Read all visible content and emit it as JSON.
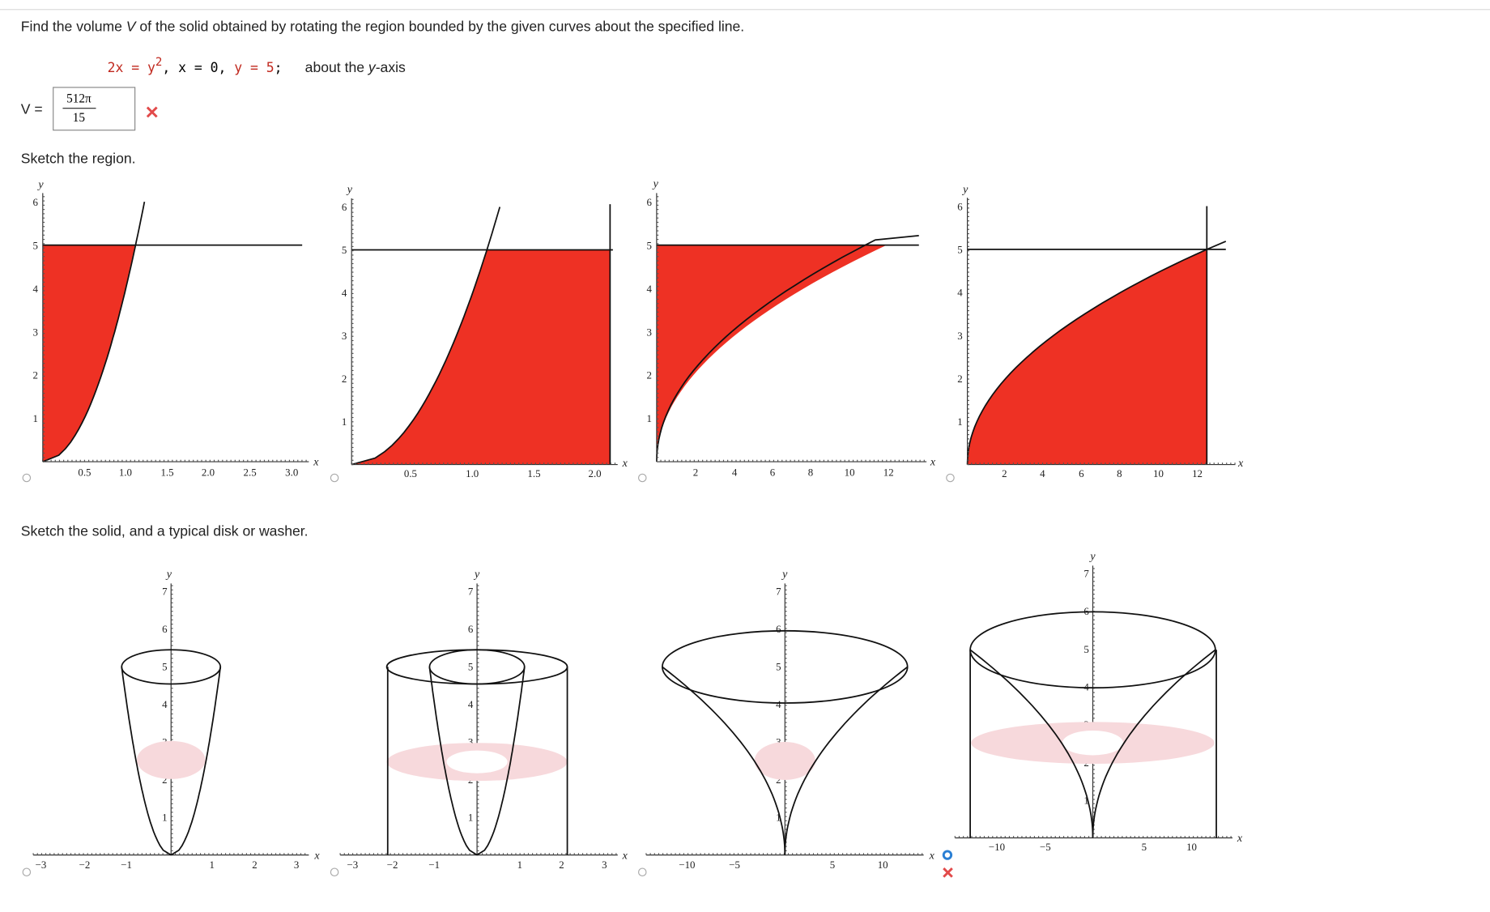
{
  "question": {
    "before": "Find the volume ",
    "variable": "V",
    "after": " of the solid obtained by rotating the region bounded by the given curves about the specified line."
  },
  "equation": {
    "curve": "2x = y",
    "exponent": "2",
    "middle": ", x = 0, ",
    "line": "y = 5",
    "end": ";",
    "about": "about the ",
    "axis_var": "y",
    "axis_rest": "-axis"
  },
  "answer": {
    "label": "V =",
    "numerator": "512π",
    "denominator": "15"
  },
  "sections": [
    "Sketch the region.",
    "Sketch the solid, and a typical disk or washer."
  ],
  "region_plots": [
    {
      "x_label": "x",
      "y_label": "y",
      "x_ticks": [
        "0.5",
        "1.0",
        "1.5",
        "2.0",
        "2.5",
        "3.0"
      ],
      "y_ticks": [
        "1",
        "2",
        "3",
        "4",
        "5",
        "6"
      ]
    },
    {
      "x_label": "x",
      "y_label": "y",
      "x_ticks": [
        "0.5",
        "1.0",
        "1.5",
        "2.0"
      ],
      "y_ticks": [
        "1",
        "2",
        "3",
        "4",
        "5",
        "6"
      ]
    },
    {
      "x_label": "x",
      "y_label": "y",
      "x_ticks": [
        "2",
        "4",
        "6",
        "8",
        "10",
        "12"
      ],
      "y_ticks": [
        "1",
        "2",
        "3",
        "4",
        "5",
        "6"
      ]
    },
    {
      "x_label": "x",
      "y_label": "y",
      "x_ticks": [
        "2",
        "4",
        "6",
        "8",
        "10",
        "12"
      ],
      "y_ticks": [
        "1",
        "2",
        "3",
        "4",
        "5",
        "6"
      ]
    }
  ],
  "solid_plots": [
    {
      "x_label": "x",
      "y_label": "y",
      "x_ticks": [
        "−3",
        "−2",
        "−1",
        "1",
        "2",
        "3"
      ],
      "y_ticks": [
        "1",
        "2",
        "3",
        "4",
        "5",
        "6",
        "7"
      ]
    },
    {
      "x_label": "x",
      "y_label": "y",
      "x_ticks": [
        "−3",
        "−2",
        "−1",
        "1",
        "2",
        "3"
      ],
      "y_ticks": [
        "1",
        "2",
        "3",
        "4",
        "5",
        "6",
        "7"
      ]
    },
    {
      "x_label": "x",
      "y_label": "y",
      "x_ticks": [
        "−10",
        "−5",
        "5",
        "10"
      ],
      "y_ticks": [
        "1",
        "2",
        "3",
        "4",
        "5",
        "6",
        "7"
      ]
    },
    {
      "x_label": "x",
      "y_label": "y",
      "x_ticks": [
        "−10",
        "−5",
        "5",
        "10"
      ],
      "y_ticks": [
        "1",
        "2",
        "3",
        "4",
        "5",
        "6",
        "7"
      ]
    }
  ]
}
